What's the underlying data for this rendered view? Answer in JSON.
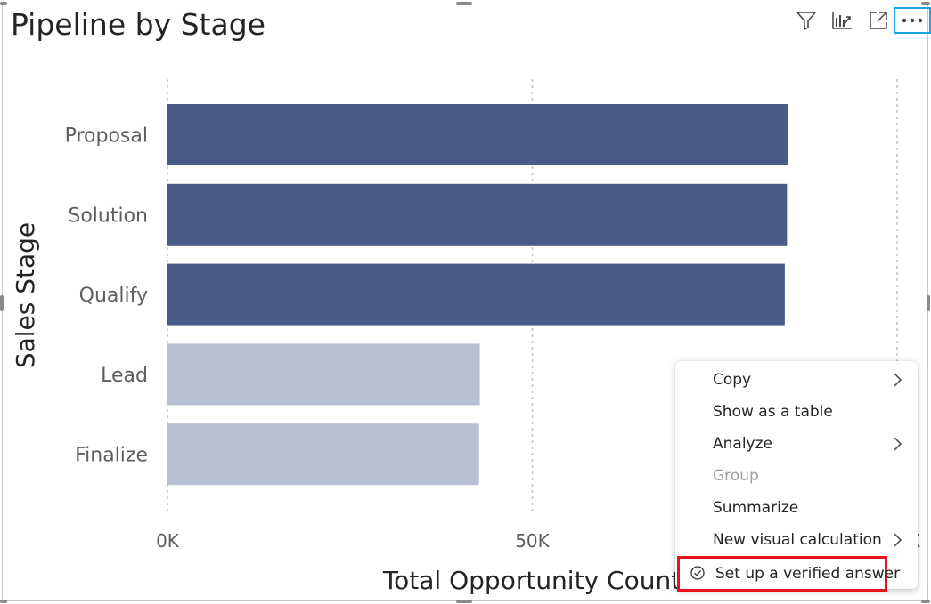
{
  "visual": {
    "title": "Pipeline by Stage"
  },
  "header_icons": [
    {
      "name": "filter-icon"
    },
    {
      "name": "drill-icon"
    },
    {
      "name": "focus-mode-icon"
    },
    {
      "name": "more-options-icon"
    }
  ],
  "chart_data": {
    "type": "bar",
    "orientation": "horizontal",
    "title": "Pipeline by Stage",
    "xlabel": "Total Opportunity Count",
    "ylabel": "Sales Stage",
    "categories": [
      "Proposal",
      "Solution",
      "Qualify",
      "Lead",
      "Finalize"
    ],
    "values": [
      85000,
      84900,
      84600,
      42800,
      42700
    ],
    "colors": [
      "#4a5b87",
      "#4a5b87",
      "#4a5b87",
      "#b8bfd2",
      "#b8bfd2"
    ],
    "xticks": [
      {
        "value": 0,
        "label": "0K"
      },
      {
        "value": 50000,
        "label": "50K"
      },
      {
        "value": 100000,
        "label": "100K"
      }
    ],
    "xlim": [
      0,
      100000
    ],
    "grid": true,
    "legend": "none"
  },
  "context_menu": {
    "items": [
      {
        "label": "Copy",
        "submenu": true,
        "enabled": true
      },
      {
        "label": "Show as a table",
        "submenu": false,
        "enabled": true
      },
      {
        "label": "Analyze",
        "submenu": true,
        "enabled": true
      },
      {
        "label": "Group",
        "submenu": false,
        "enabled": false
      },
      {
        "label": "Summarize",
        "submenu": false,
        "enabled": true
      },
      {
        "label": "New visual calculation",
        "submenu": true,
        "enabled": true
      },
      {
        "label": "Set up a verified answer",
        "submenu": false,
        "enabled": true,
        "icon": "check-circle-icon",
        "highlighted": true
      }
    ]
  }
}
